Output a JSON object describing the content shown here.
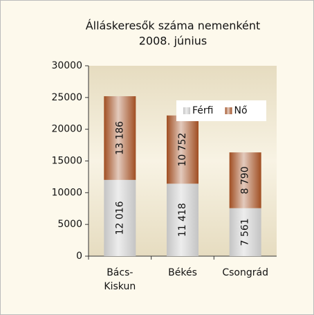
{
  "chart_data": {
    "type": "stacked_bar",
    "title": "Álláskeresők száma nemenként",
    "subtitle": "2008. június",
    "categories": [
      "Bács-Kiskun",
      "Békés",
      "Csongrád"
    ],
    "series": [
      {
        "name": "Férfi",
        "color": "#c4c4c4",
        "values": [
          12016,
          11418,
          7561
        ],
        "value_labels": [
          "12 016",
          "11 418",
          "7 561"
        ]
      },
      {
        "name": "Nő",
        "color": "#a04e22",
        "values": [
          13186,
          10752,
          8790
        ],
        "value_labels": [
          "13 186",
          "10 752",
          "8 790"
        ]
      }
    ],
    "ylim": [
      0,
      30000
    ],
    "yticks": [
      0,
      5000,
      10000,
      15000,
      20000,
      25000,
      30000
    ],
    "legend": "upper right"
  }
}
